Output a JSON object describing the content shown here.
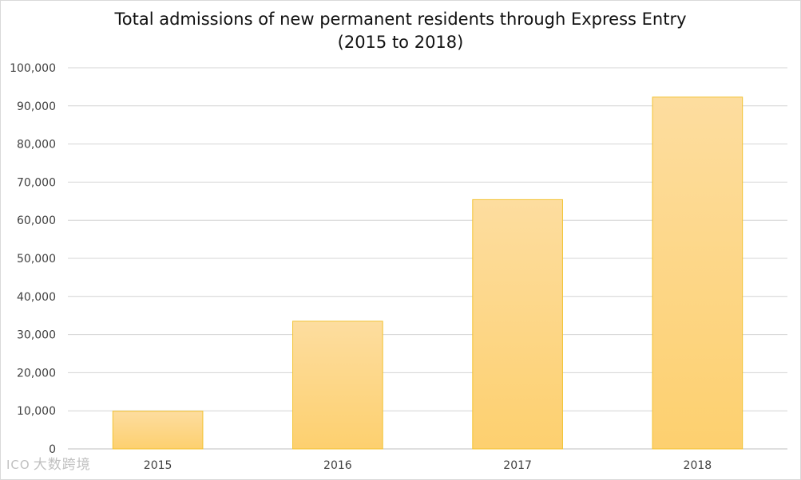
{
  "chart_data": {
    "type": "bar",
    "title_lines": [
      "Total admissions of new permanent residents through Express Entry",
      "(2015 to 2018)"
    ],
    "categories": [
      "2015",
      "2016",
      "2017",
      "2018"
    ],
    "values": [
      9900,
      33500,
      65400,
      92300
    ],
    "ylim": [
      0,
      100000
    ],
    "yticks": [
      0,
      10000,
      20000,
      30000,
      40000,
      50000,
      60000,
      70000,
      80000,
      90000,
      100000
    ],
    "ytick_labels": [
      "0",
      "10,000",
      "20,000",
      "30,000",
      "40,000",
      "50,000",
      "60,000",
      "70,000",
      "80,000",
      "90,000",
      "100,000"
    ],
    "grid": true,
    "legend": "none",
    "colors": {
      "bar_top": "#fddd9f",
      "bar_bottom": "#fdd06f",
      "bar_border": "#f2c230",
      "grid": "#d4d4d4"
    }
  },
  "watermark": {
    "logo_text": "ICO",
    "text": "大数跨境"
  }
}
